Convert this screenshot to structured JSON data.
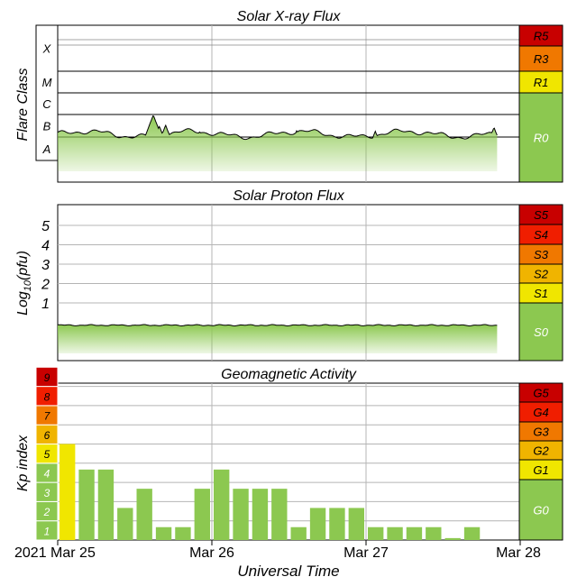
{
  "chart_data": [
    {
      "type": "area",
      "title": "Solar X-ray Flux",
      "ylabel": "Flare Class",
      "classes": [
        "X",
        "M",
        "C",
        "B",
        "A"
      ],
      "levels": [
        {
          "label": "R5",
          "color": "#c80000"
        },
        {
          "label": "R3",
          "color": "#f07800"
        },
        {
          "label": "R1",
          "color": "#f0e600"
        },
        {
          "label": "R0",
          "color": "#8cc850"
        }
      ],
      "baseline_class": 0.65,
      "spikes": [
        {
          "t": 0.62,
          "class": 1.5
        },
        {
          "t": 0.66,
          "class": 1.0
        },
        {
          "t": 0.7,
          "class": 1.05
        },
        {
          "t": 0.92,
          "class": 0.75
        },
        {
          "t": 1.55,
          "class": 0.8
        },
        {
          "t": 1.57,
          "class": 0.85
        },
        {
          "t": 2.06,
          "class": 0.78
        },
        {
          "t": 2.83,
          "class": 0.95
        }
      ]
    },
    {
      "type": "area",
      "title": "Solar Proton Flux",
      "ylabel": "Log10(pfu)",
      "ylabel_main": "Log",
      "ylabel_sub": "10",
      "ylabel_tail": "(pfu)",
      "yticks": [
        "1",
        "2",
        "3",
        "4",
        "5"
      ],
      "levels": [
        {
          "label": "S5",
          "color": "#c80000"
        },
        {
          "label": "S4",
          "color": "#f01e00"
        },
        {
          "label": "S3",
          "color": "#f07800"
        },
        {
          "label": "S2",
          "color": "#f0b400"
        },
        {
          "label": "S1",
          "color": "#f0e600"
        },
        {
          "label": "S0",
          "color": "#8cc850"
        }
      ],
      "baseline_log": -0.15
    },
    {
      "type": "bar",
      "title": "Geomagnetic Activity",
      "ylabel": "Kp index",
      "yticks": [
        "1",
        "2",
        "3",
        "4",
        "5",
        "6",
        "7",
        "8",
        "9"
      ],
      "tick_colors": [
        "#8cc850",
        "#8cc850",
        "#8cc850",
        "#8cc850",
        "#f0e600",
        "#f0b400",
        "#f07800",
        "#f01e00",
        "#c80000"
      ],
      "levels": [
        {
          "label": "G5",
          "color": "#c80000"
        },
        {
          "label": "G4",
          "color": "#f01e00"
        },
        {
          "label": "G3",
          "color": "#f07800"
        },
        {
          "label": "G2",
          "color": "#f0b400"
        },
        {
          "label": "G1",
          "color": "#f0e600"
        },
        {
          "label": "G0",
          "color": "#8cc850"
        }
      ],
      "bar_values": [
        5,
        3.67,
        3.67,
        1.67,
        2.67,
        0.67,
        0.67,
        2.67,
        3.67,
        2.67,
        2.67,
        2.67,
        0.67,
        1.67,
        1.67,
        1.67,
        0.67,
        0.67,
        0.67,
        0.67,
        0.1,
        0.67
      ],
      "bar_colors": {
        "quiet": "#8cc850",
        "storm": "#f0e600"
      }
    }
  ],
  "x_axis": {
    "label": "Universal Time",
    "ticks": [
      {
        "label": "2021 Mar 25",
        "day": 0
      },
      {
        "label": "Mar 26",
        "day": 1
      },
      {
        "label": "Mar 27",
        "day": 2
      },
      {
        "label": "Mar 28",
        "day": 3
      }
    ]
  }
}
